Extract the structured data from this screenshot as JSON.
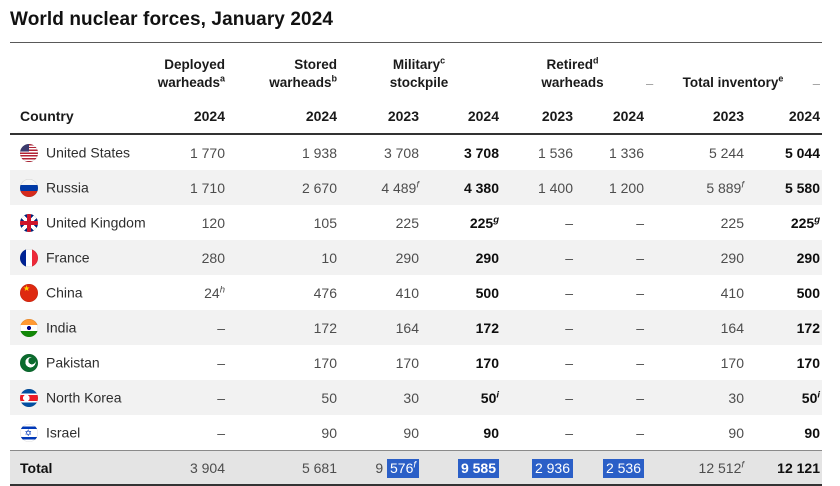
{
  "title": "World nuclear forces, January 2024",
  "colors": {
    "selection_highlight": "#2b5fc7",
    "selection_text": "#ffffff",
    "row_alt_background": "#f2f2f2",
    "total_row_background": "#e4e4e4",
    "bold_value_color": "#0e0e0e",
    "regular_value_color": "#4d4d4d"
  },
  "table": {
    "country_header": "Country",
    "group_headers": [
      {
        "line1": "Deployed",
        "line2": "warheads^a"
      },
      {
        "line1": "Stored",
        "line2": "warheads^b"
      },
      {
        "line1": "Military^c",
        "line2": "stockpile"
      },
      {
        "line1": "Retired^d",
        "line2": "warheads"
      },
      {
        "line1": "Total inventory^e",
        "dash_left": "–",
        "dash_right": "–"
      }
    ],
    "year_headers": [
      "2024",
      "2024",
      "2023",
      "2024",
      "2023",
      "2024",
      "2023",
      "2024"
    ],
    "rows": [
      {
        "country": "United States",
        "flag": "us",
        "values": [
          "1 770",
          "1 938",
          "3 708",
          "3 708",
          "1 536",
          "1 336",
          "5 244",
          "5 044"
        ]
      },
      {
        "country": "Russia",
        "flag": "ru",
        "values": [
          "1 710",
          "2 670",
          "4 489^f",
          "4 380",
          "1 400",
          "1 200",
          "5 889^f",
          "5 580"
        ]
      },
      {
        "country": "United Kingdom",
        "flag": "gb",
        "values": [
          "120",
          "105",
          "225",
          "225^g",
          "–",
          "–",
          "225",
          "225^g"
        ]
      },
      {
        "country": "France",
        "flag": "fr",
        "values": [
          "280",
          "10",
          "290",
          "290",
          "–",
          "–",
          "290",
          "290"
        ]
      },
      {
        "country": "China",
        "flag": "cn",
        "values": [
          "24^h",
          "476",
          "410",
          "500",
          "–",
          "–",
          "410",
          "500"
        ]
      },
      {
        "country": "India",
        "flag": "in",
        "values": [
          "–",
          "172",
          "164",
          "172",
          "–",
          "–",
          "164",
          "172"
        ]
      },
      {
        "country": "Pakistan",
        "flag": "pk",
        "values": [
          "–",
          "170",
          "170",
          "170",
          "–",
          "–",
          "170",
          "170"
        ]
      },
      {
        "country": "North Korea",
        "flag": "kp",
        "values": [
          "–",
          "50",
          "30",
          "50^i",
          "–",
          "–",
          "30",
          "50^i"
        ]
      },
      {
        "country": "Israel",
        "flag": "il",
        "values": [
          "–",
          "90",
          "90",
          "90",
          "–",
          "–",
          "90",
          "90"
        ]
      }
    ],
    "total_row": {
      "label": "Total",
      "values": [
        {
          "text": "3 904"
        },
        {
          "text": "5 681"
        },
        {
          "pre": "9 ",
          "sel": "576^f"
        },
        {
          "sel": "9 585"
        },
        {
          "sel": "2 936"
        },
        {
          "sel": "2 536"
        },
        {
          "text": "12 512^f"
        },
        {
          "text": "12 121"
        }
      ]
    }
  }
}
